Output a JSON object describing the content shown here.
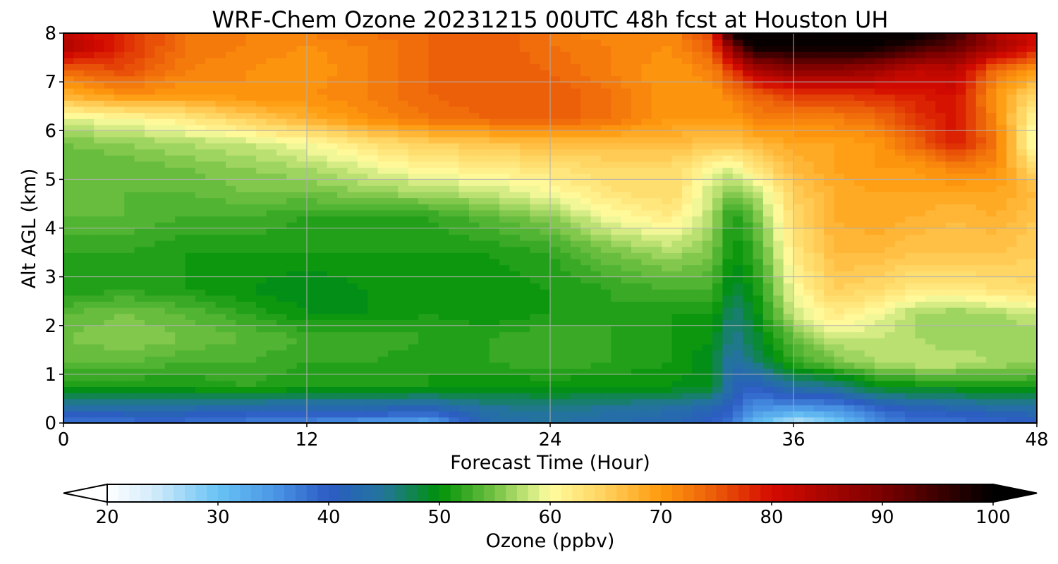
{
  "chart_data": {
    "type": "heatmap",
    "title": "WRF-Chem Ozone  20231215 00UTC 48h fcst at Houston UH",
    "xlabel": "Forecast Time (Hour)",
    "ylabel": "Alt AGL (km)",
    "xlim": [
      0,
      48
    ],
    "ylim": [
      0,
      8
    ],
    "xticks": [
      0,
      12,
      24,
      36,
      48
    ],
    "yticks": [
      0,
      1,
      2,
      3,
      4,
      5,
      6,
      7,
      8
    ],
    "grid": true,
    "x": [
      0,
      3,
      6,
      9,
      12,
      15,
      18,
      21,
      24,
      27,
      30,
      32,
      33,
      34,
      36,
      38,
      40,
      42,
      44,
      46,
      48
    ],
    "y": [
      0,
      0.25,
      0.75,
      1.25,
      1.75,
      2.25,
      2.75,
      3.5,
      4.25,
      4.75,
      5.25,
      5.75,
      6.25,
      6.75,
      7.25,
      7.75,
      8
    ],
    "z": [
      [
        37,
        38,
        38,
        37,
        36,
        34,
        33,
        43,
        44,
        43,
        42,
        40,
        37,
        32,
        24,
        28,
        36,
        38,
        38,
        39,
        40
      ],
      [
        42,
        42,
        42,
        41,
        41,
        41,
        40,
        44,
        45,
        44,
        43,
        41,
        39,
        35,
        33,
        34,
        38,
        40,
        41,
        42,
        43
      ],
      [
        51,
        51,
        51,
        52,
        51,
        51,
        51,
        50,
        50,
        50,
        50,
        49,
        42,
        40,
        44,
        45,
        49,
        50,
        50,
        51,
        51
      ],
      [
        54,
        54,
        53,
        53,
        52,
        52,
        51,
        52,
        53,
        52,
        51,
        49,
        43,
        46,
        52,
        55,
        57,
        58,
        58,
        57,
        56
      ],
      [
        55,
        56,
        55,
        54,
        53,
        53,
        52,
        52,
        53,
        52,
        51,
        50,
        45,
        48,
        54,
        58,
        58,
        57,
        56,
        56,
        56
      ],
      [
        54,
        55,
        54,
        52,
        50,
        50,
        51,
        50,
        51,
        52,
        51,
        51,
        46,
        49,
        58,
        62,
        60,
        57,
        56,
        57,
        58
      ],
      [
        51,
        52,
        51,
        50,
        49,
        50,
        50,
        50,
        51,
        52,
        53,
        53,
        48,
        50,
        60,
        65,
        64,
        62,
        62,
        63,
        64
      ],
      [
        52,
        52,
        51,
        51,
        51,
        51,
        51,
        51,
        52,
        55,
        57,
        55,
        50,
        52,
        62,
        67,
        67,
        66,
        66,
        66,
        65
      ],
      [
        54,
        54,
        53,
        53,
        52,
        52,
        52,
        54,
        56,
        60,
        62,
        57,
        51,
        54,
        64,
        68,
        69,
        68,
        67,
        68,
        66
      ],
      [
        54,
        54,
        54,
        55,
        55,
        56,
        57,
        58,
        60,
        63,
        64,
        58,
        55,
        57,
        65,
        68,
        69,
        69,
        69,
        69,
        67
      ],
      [
        54,
        54,
        55,
        56,
        57,
        59,
        61,
        62,
        63,
        64,
        64,
        60,
        59,
        63,
        67,
        69,
        70,
        70,
        72,
        71,
        63
      ],
      [
        55,
        56,
        57,
        58,
        60,
        63,
        65,
        66,
        67,
        67,
        67,
        66,
        66,
        67,
        69,
        69,
        70,
        74,
        79,
        73,
        58
      ],
      [
        59,
        60,
        62,
        65,
        68,
        71,
        73,
        74,
        75,
        73,
        70,
        70,
        70,
        72,
        72,
        72,
        73,
        77,
        80,
        71,
        60
      ],
      [
        68,
        71,
        70,
        71,
        71,
        72,
        74,
        75,
        75,
        73,
        70,
        70,
        72,
        74,
        77,
        77,
        78,
        79,
        80,
        70,
        64
      ],
      [
        74,
        76,
        72,
        71,
        70,
        72,
        74,
        75,
        74,
        72,
        70,
        72,
        77,
        84,
        88,
        88,
        86,
        82,
        83,
        73,
        70
      ],
      [
        85,
        78,
        73,
        72,
        71,
        72,
        74,
        75,
        73,
        72,
        71,
        75,
        90,
        100,
        100,
        100,
        100,
        96,
        92,
        86,
        80
      ],
      [
        82,
        78,
        73,
        72,
        72,
        73,
        74,
        75,
        73,
        71,
        71,
        77,
        100,
        100,
        100,
        100,
        100,
        100,
        95,
        84,
        80
      ]
    ],
    "colorbar": {
      "label": "Ozone  (ppbv)",
      "ticks": [
        20,
        30,
        40,
        50,
        60,
        70,
        80,
        90,
        100
      ],
      "min": 20,
      "max": 100,
      "step": 1,
      "extend": "both",
      "stops": [
        [
          20,
          "#ffffff"
        ],
        [
          24,
          "#d5ecfb"
        ],
        [
          30,
          "#68c3f4"
        ],
        [
          35,
          "#4b97e6"
        ],
        [
          40,
          "#2c5bc4"
        ],
        [
          45,
          "#22769a"
        ],
        [
          50,
          "#009208"
        ],
        [
          55,
          "#74c244"
        ],
        [
          60,
          "#fffda0"
        ],
        [
          65,
          "#ffd05c"
        ],
        [
          70,
          "#ff9a0e"
        ],
        [
          75,
          "#eb5909"
        ],
        [
          80,
          "#d40a00"
        ],
        [
          90,
          "#7a0000"
        ],
        [
          100,
          "#000000"
        ]
      ]
    }
  }
}
